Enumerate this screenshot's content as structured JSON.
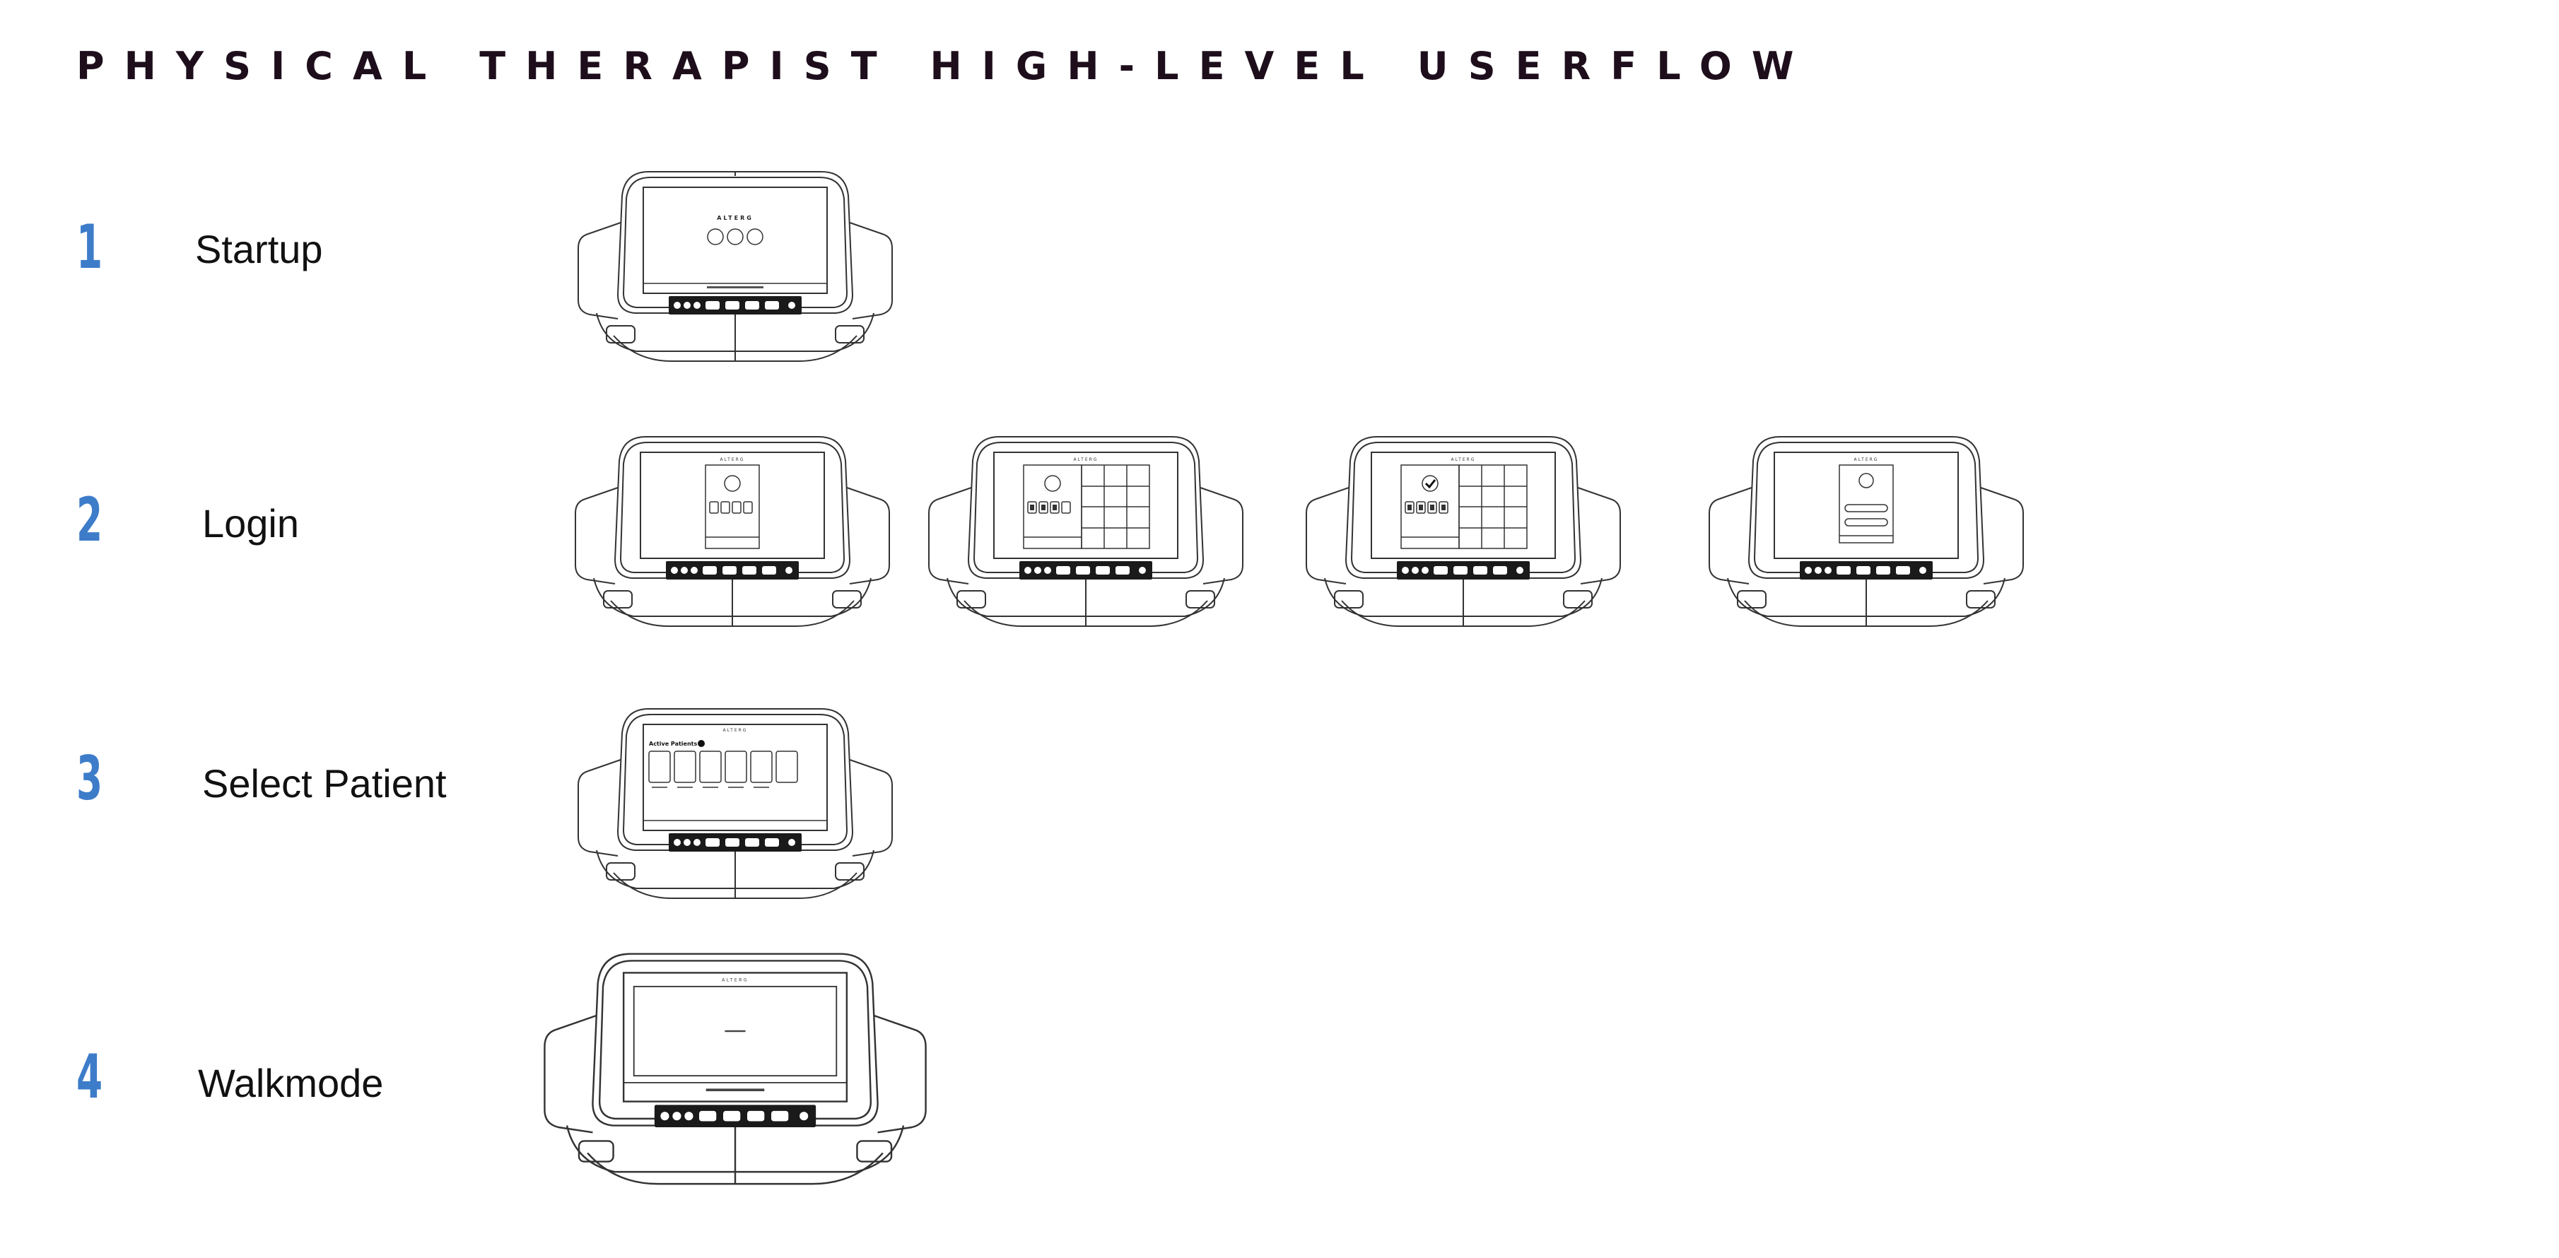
{
  "title": "PHYSICAL THERAPIST HIGH-LEVEL USERFLOW",
  "steps": [
    {
      "number": "1",
      "label": "Startup"
    },
    {
      "number": "2",
      "label": "Login"
    },
    {
      "number": "3",
      "label": "Select Patient"
    },
    {
      "number": "4",
      "label": "Walkmode"
    }
  ],
  "device": {
    "brand": "ALTERG"
  },
  "select_patient_screen": {
    "heading": "Active Patients"
  }
}
